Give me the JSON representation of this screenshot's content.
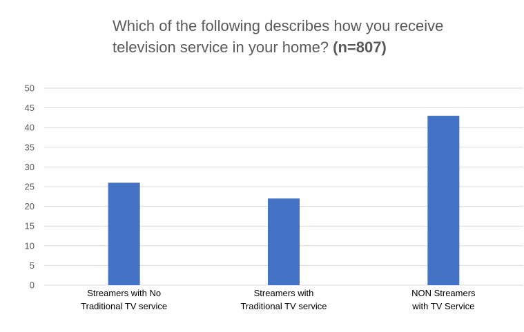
{
  "chart_data": {
    "type": "bar",
    "title": "Which of the following describes how you receive television service in your home?",
    "title_suffix": "(n=807)",
    "categories": [
      [
        "Streamers with No",
        "Traditional TV service"
      ],
      [
        "Streamers with",
        "Traditional TV service"
      ],
      [
        "NON Streamers",
        "with TV Service"
      ]
    ],
    "values": [
      26,
      22,
      43
    ],
    "ylim": [
      0,
      50
    ],
    "yticks": [
      0,
      5,
      10,
      15,
      20,
      25,
      30,
      35,
      40,
      45,
      50
    ],
    "grid": true,
    "bar_color": "#4472C4",
    "grid_color": "#D9D9D9"
  }
}
